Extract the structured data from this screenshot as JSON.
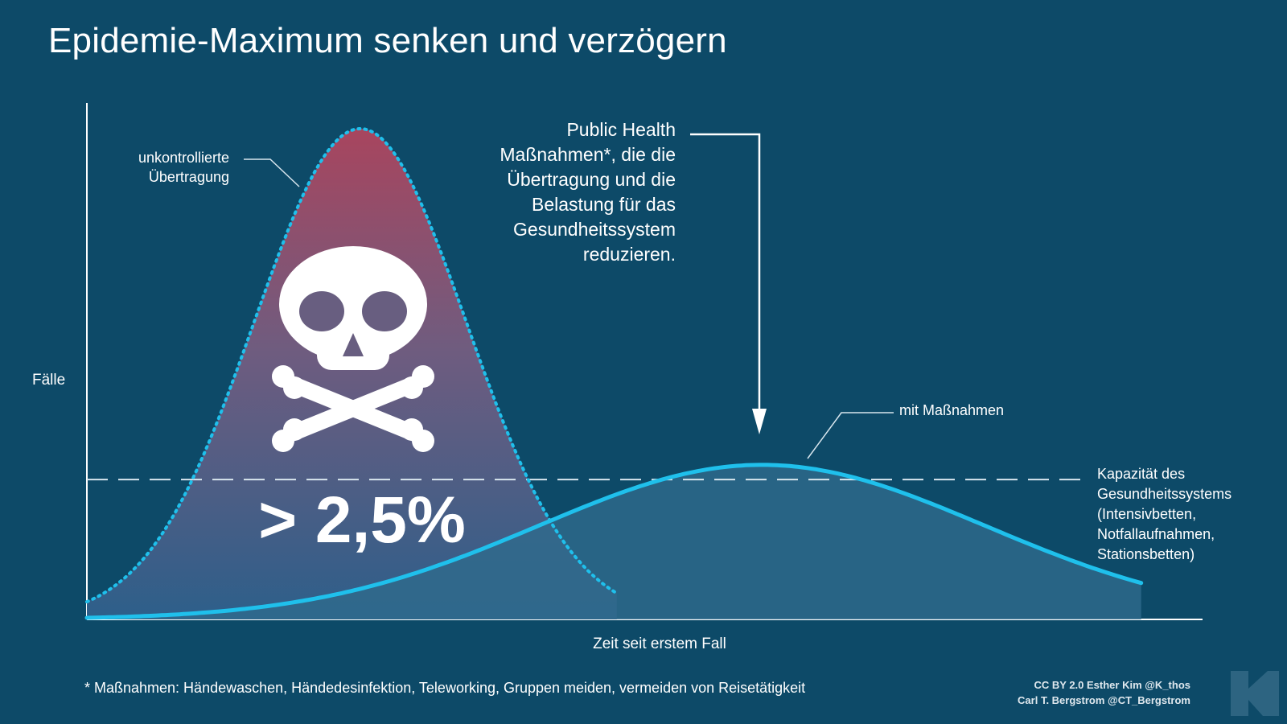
{
  "chart_data": {
    "type": "area",
    "title": "Epidemie-Maximum senken und verzögern",
    "xlabel": "Zeit seit erstem Fall",
    "ylabel": "Fälle",
    "ylim": [
      0,
      100
    ],
    "xlim": [
      0,
      100
    ],
    "grid": false,
    "series": [
      {
        "name": "unkontrollierte Übertragung",
        "peak_x": 24.5,
        "peak_y": 100,
        "spread": 9.5,
        "style": "dotted",
        "fill": "gradient"
      },
      {
        "name": "mit Maßnahmen",
        "peak_x": 60.5,
        "peak_y": 31.5,
        "spread": 20,
        "style": "solid"
      }
    ],
    "capacity_line": {
      "label": "Kapazität des Gesundheitssystems (Intensivbetten, Notfallaufnahmen, Stationsbetten)",
      "y": 28.5
    },
    "annotations": [
      "unkontrollierte Übertragung",
      "Public Health Maßnahmen*, die die Übertragung und die Belastung für das Gesundheitssystem reduzieren.",
      "mit Maßnahmen",
      "> 2,5%"
    ]
  },
  "text": {
    "title": "Epidemie-Maximum senken und verzögern",
    "ylabel": "Fälle",
    "xlabel": "Zeit seit erstem Fall",
    "uncontrolled": "unkontrollierte\nÜbertragung",
    "measures": "Public Health\nMaßnahmen*, die die\nÜbertragung und die\nBelastung für das\nGesundheitssystem\nreduzieren.",
    "with_measures": "mit Maßnahmen",
    "capacity": "Kapazität des\nGesundheitssystems\n(Intensivbetten,\nNotfallaufnahmen,\nStationsbetten)",
    "mortality": "> 2,5%",
    "footnote": "* Maßnahmen: Händewaschen, Händedesinfektion, Teleworking, Gruppen meiden, vermeiden von Reisetätigkeit",
    "credit": "CC BY 2.0  Esther Kim  @K_thos\nCarl T. Bergstrom  @CT_Bergstrom"
  },
  "icons": {
    "mortality": "skull-crossbones-icon",
    "logo": "k-logo-icon"
  },
  "colors": {
    "background": "#0d4a68",
    "curve": "#1fc0ec",
    "gradient_top": "#a8455e",
    "gradient_bottom": "#2d5f8a",
    "flat_fill": "#2f6a8c",
    "capacity": "#d8e6ee"
  }
}
